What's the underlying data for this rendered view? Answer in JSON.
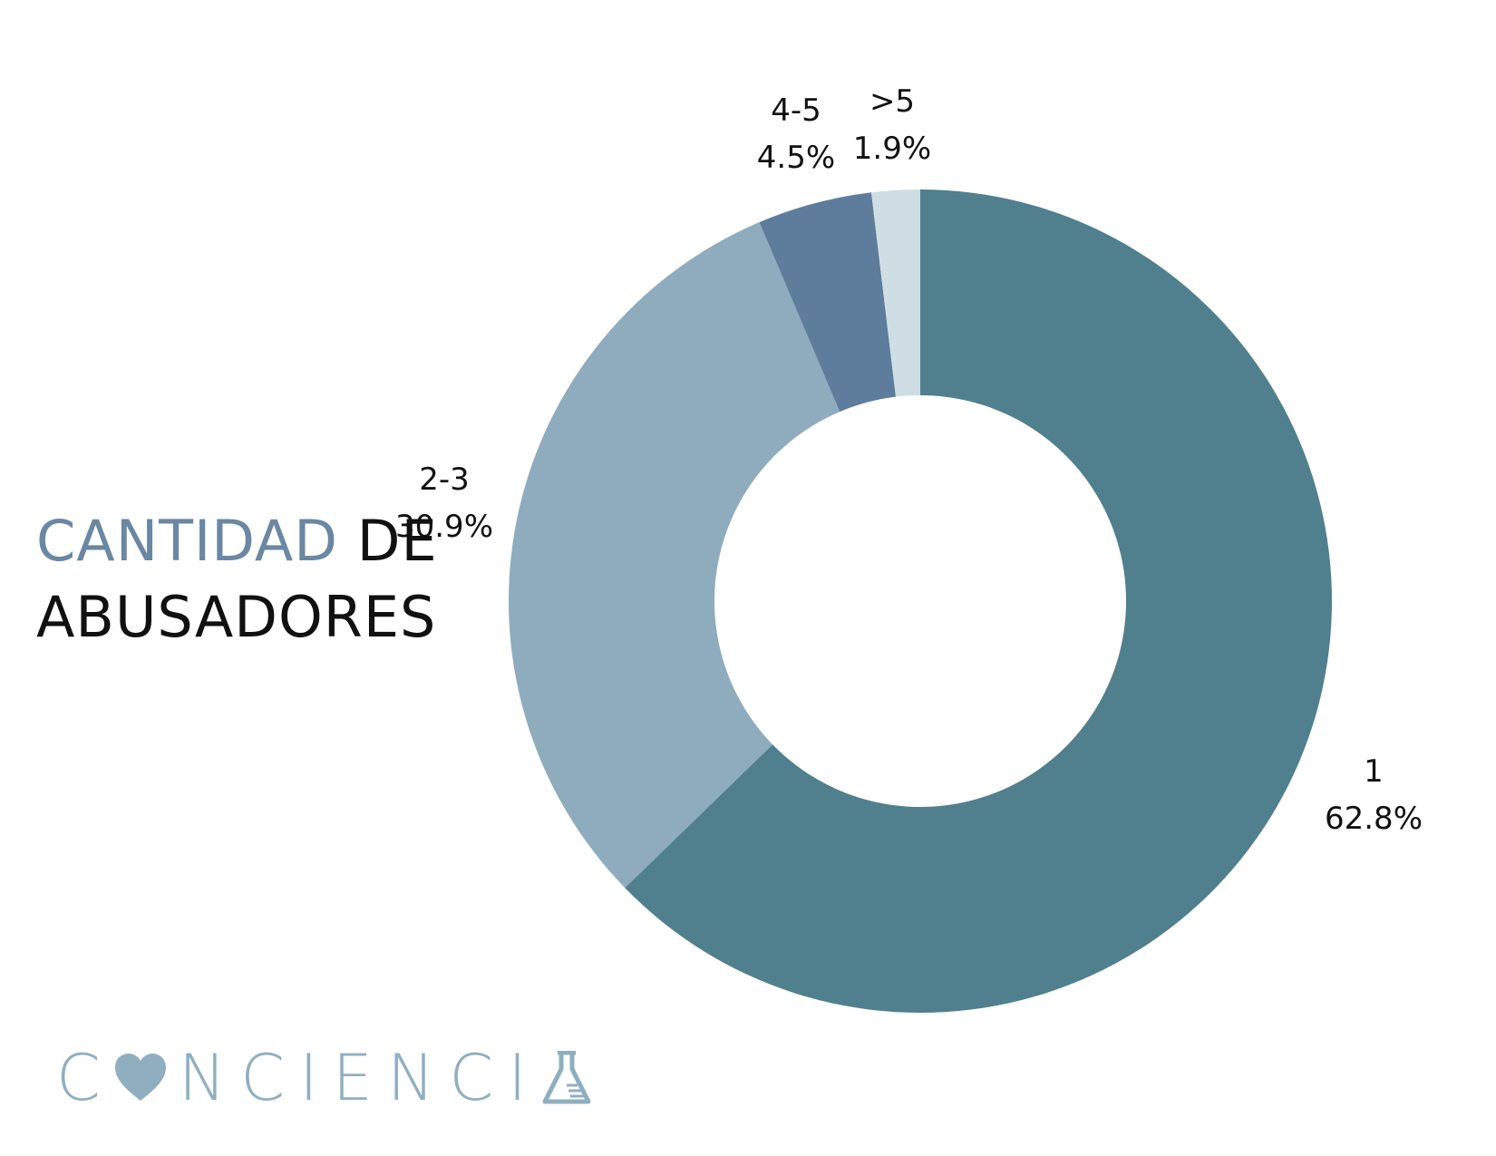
{
  "title": {
    "accent": "CANTIDAD",
    "rest_line1": "DE",
    "line2": "ABUSADORES"
  },
  "logo": {
    "text_before": "C",
    "text_after": "NCIENCI",
    "heart_icon": "heart-icon",
    "flask_icon": "flask-icon",
    "color": "#8fafc1"
  },
  "chart_data": {
    "type": "pie",
    "donut": true,
    "categories": [
      "1",
      "2-3",
      "4-5",
      ">5"
    ],
    "values": [
      62.8,
      30.9,
      4.5,
      1.9
    ],
    "labels": [
      "62.8%",
      "30.9%",
      "4.5%",
      "1.9%"
    ],
    "colors": [
      "#50808e",
      "#8eacbd",
      "#5e7c9b",
      "#cfdee4"
    ],
    "title": "CANTIDAD DE ABUSADORES"
  }
}
